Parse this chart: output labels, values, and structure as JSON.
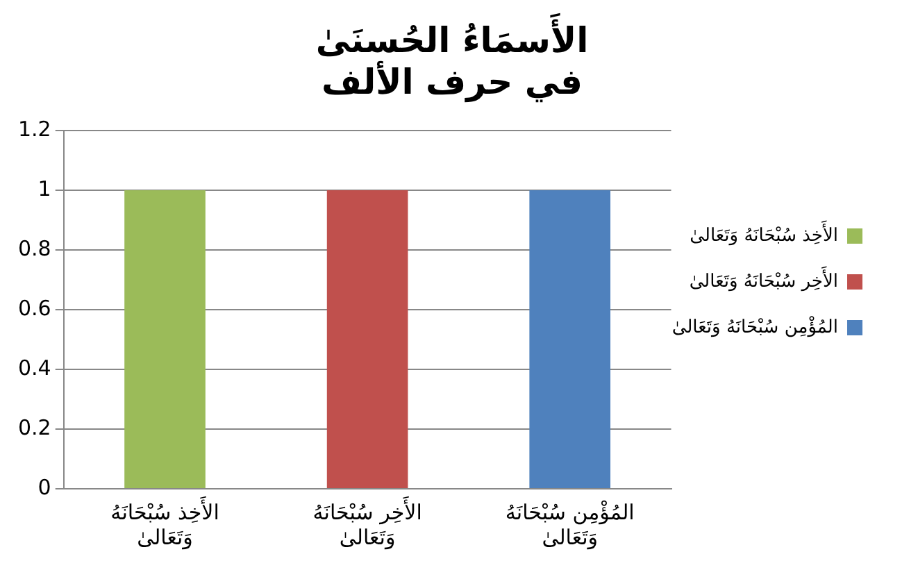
{
  "chart_data": {
    "type": "bar",
    "title": "الأَسمَاءُ الحُسنَىٰ\nفي حرف الألف",
    "categories": [
      "الأَخِذ سُبْحَانَهُ وَتَعَالىٰ",
      "الأَخِر سُبْحَانَهُ وَتَعَالىٰ",
      "المُؤْمِن سُبْحَانَهُ وَتَعَالىٰ"
    ],
    "series": [
      {
        "name": "الأَخِذ سُبْحَانَهُ وَتَعَالىٰ",
        "color": "#9bbb59",
        "values": [
          1,
          null,
          null
        ]
      },
      {
        "name": "الأَخِر سُبْحَانَهُ وَتَعَالىٰ",
        "color": "#c0504d",
        "values": [
          null,
          1,
          null
        ]
      },
      {
        "name": "المُؤْمِن سُبْحَانَهُ وَتَعَالىٰ",
        "color": "#4f81bd",
        "values": [
          null,
          null,
          1
        ]
      }
    ],
    "ylim": [
      0,
      1.2
    ],
    "yticks": [
      0,
      0.2,
      0.4,
      0.6,
      0.8,
      1,
      1.2
    ],
    "grid": "y",
    "legend": "right"
  }
}
